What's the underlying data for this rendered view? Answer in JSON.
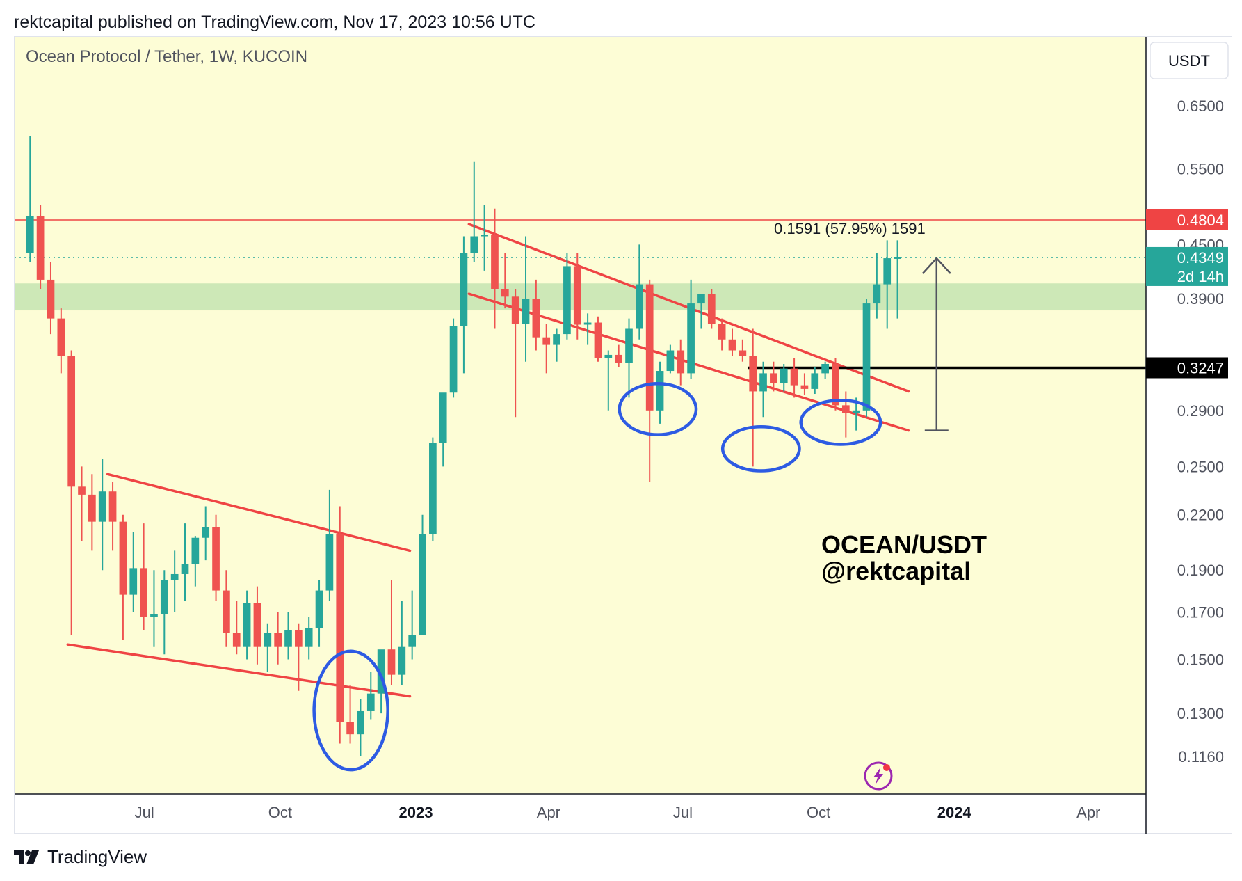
{
  "header": {
    "publisher_line": "rektcapital published on TradingView.com, Nov 17, 2023 10:56 UTC"
  },
  "footer": {
    "brand": "TradingView"
  },
  "colors": {
    "background": "#fdfdd6",
    "bull": "#26a69a",
    "bear": "#ef5350",
    "trendline": "#ef4444",
    "circle": "#2d5be3",
    "zone": "#c8e6b4",
    "resistance": "#ef4444",
    "support": "#000000"
  },
  "chart_data": {
    "type": "candlestick",
    "title": "Ocean Protocol / Tether, 1W, KUCOIN",
    "currency_label": "USDT",
    "y_scale": "log",
    "ylim": [
      0.105,
      0.78
    ],
    "xlabel": "",
    "ylabel": "",
    "y_ticks": [
      "0.6500",
      "0.5500",
      "0.4500",
      "0.3900",
      "0.2900",
      "0.2500",
      "0.2200",
      "0.1900",
      "0.1700",
      "0.1500",
      "0.1300",
      "0.1160"
    ],
    "x_ticks": [
      {
        "label": "Jul",
        "date": "2022-07-01",
        "bold": false
      },
      {
        "label": "Oct",
        "date": "2022-10-01",
        "bold": false
      },
      {
        "label": "2023",
        "date": "2023-01-01",
        "bold": true
      },
      {
        "label": "Apr",
        "date": "2023-04-01",
        "bold": false
      },
      {
        "label": "Jul",
        "date": "2023-07-01",
        "bold": false
      },
      {
        "label": "Oct",
        "date": "2023-10-01",
        "bold": false
      },
      {
        "label": "2024",
        "date": "2024-01-01",
        "bold": true
      },
      {
        "label": "Apr",
        "date": "2024-04-01",
        "bold": false
      }
    ],
    "x_range": [
      "2022-04-04",
      "2024-05-10"
    ],
    "candles": [
      {
        "date": "2022-04-11",
        "o": 0.44,
        "h": 0.6,
        "l": 0.43,
        "c": 0.485
      },
      {
        "date": "2022-04-18",
        "o": 0.485,
        "h": 0.5,
        "l": 0.4,
        "c": 0.41
      },
      {
        "date": "2022-04-25",
        "o": 0.41,
        "h": 0.43,
        "l": 0.355,
        "c": 0.37
      },
      {
        "date": "2022-05-02",
        "o": 0.37,
        "h": 0.38,
        "l": 0.32,
        "c": 0.335
      },
      {
        "date": "2022-05-09",
        "o": 0.335,
        "h": 0.34,
        "l": 0.16,
        "c": 0.237
      },
      {
        "date": "2022-05-16",
        "o": 0.237,
        "h": 0.25,
        "l": 0.205,
        "c": 0.232
      },
      {
        "date": "2022-05-23",
        "o": 0.232,
        "h": 0.245,
        "l": 0.2,
        "c": 0.216
      },
      {
        "date": "2022-05-30",
        "o": 0.216,
        "h": 0.255,
        "l": 0.19,
        "c": 0.234
      },
      {
        "date": "2022-06-06",
        "o": 0.234,
        "h": 0.24,
        "l": 0.2,
        "c": 0.216
      },
      {
        "date": "2022-06-13",
        "o": 0.216,
        "h": 0.22,
        "l": 0.158,
        "c": 0.178
      },
      {
        "date": "2022-06-20",
        "o": 0.178,
        "h": 0.21,
        "l": 0.17,
        "c": 0.191
      },
      {
        "date": "2022-06-27",
        "o": 0.191,
        "h": 0.215,
        "l": 0.162,
        "c": 0.168
      },
      {
        "date": "2022-07-04",
        "o": 0.168,
        "h": 0.19,
        "l": 0.155,
        "c": 0.169
      },
      {
        "date": "2022-07-11",
        "o": 0.169,
        "h": 0.19,
        "l": 0.152,
        "c": 0.185
      },
      {
        "date": "2022-07-18",
        "o": 0.185,
        "h": 0.2,
        "l": 0.17,
        "c": 0.188
      },
      {
        "date": "2022-07-25",
        "o": 0.188,
        "h": 0.215,
        "l": 0.175,
        "c": 0.193
      },
      {
        "date": "2022-08-01",
        "o": 0.193,
        "h": 0.208,
        "l": 0.182,
        "c": 0.207
      },
      {
        "date": "2022-08-08",
        "o": 0.207,
        "h": 0.225,
        "l": 0.195,
        "c": 0.213
      },
      {
        "date": "2022-08-15",
        "o": 0.213,
        "h": 0.22,
        "l": 0.175,
        "c": 0.18
      },
      {
        "date": "2022-08-22",
        "o": 0.18,
        "h": 0.19,
        "l": 0.155,
        "c": 0.161
      },
      {
        "date": "2022-08-29",
        "o": 0.161,
        "h": 0.175,
        "l": 0.152,
        "c": 0.155
      },
      {
        "date": "2022-09-05",
        "o": 0.155,
        "h": 0.18,
        "l": 0.15,
        "c": 0.174
      },
      {
        "date": "2022-09-12",
        "o": 0.174,
        "h": 0.182,
        "l": 0.148,
        "c": 0.155
      },
      {
        "date": "2022-09-19",
        "o": 0.155,
        "h": 0.165,
        "l": 0.145,
        "c": 0.161
      },
      {
        "date": "2022-09-26",
        "o": 0.161,
        "h": 0.17,
        "l": 0.148,
        "c": 0.155
      },
      {
        "date": "2022-10-03",
        "o": 0.155,
        "h": 0.17,
        "l": 0.15,
        "c": 0.162
      },
      {
        "date": "2022-10-10",
        "o": 0.162,
        "h": 0.165,
        "l": 0.138,
        "c": 0.155
      },
      {
        "date": "2022-10-17",
        "o": 0.155,
        "h": 0.168,
        "l": 0.15,
        "c": 0.163
      },
      {
        "date": "2022-10-24",
        "o": 0.163,
        "h": 0.185,
        "l": 0.155,
        "c": 0.18
      },
      {
        "date": "2022-10-31",
        "o": 0.18,
        "h": 0.235,
        "l": 0.175,
        "c": 0.209
      },
      {
        "date": "2022-11-07",
        "o": 0.209,
        "h": 0.225,
        "l": 0.12,
        "c": 0.127
      },
      {
        "date": "2022-11-14",
        "o": 0.127,
        "h": 0.14,
        "l": 0.12,
        "c": 0.123
      },
      {
        "date": "2022-11-21",
        "o": 0.123,
        "h": 0.135,
        "l": 0.116,
        "c": 0.131
      },
      {
        "date": "2022-11-28",
        "o": 0.131,
        "h": 0.145,
        "l": 0.128,
        "c": 0.137
      },
      {
        "date": "2022-12-05",
        "o": 0.137,
        "h": 0.15,
        "l": 0.13,
        "c": 0.154
      },
      {
        "date": "2022-12-12",
        "o": 0.154,
        "h": 0.185,
        "l": 0.14,
        "c": 0.144
      },
      {
        "date": "2022-12-19",
        "o": 0.144,
        "h": 0.175,
        "l": 0.14,
        "c": 0.155
      },
      {
        "date": "2022-12-26",
        "o": 0.155,
        "h": 0.18,
        "l": 0.15,
        "c": 0.16
      },
      {
        "date": "2023-01-02",
        "o": 0.16,
        "h": 0.22,
        "l": 0.16,
        "c": 0.209
      },
      {
        "date": "2023-01-09",
        "o": 0.209,
        "h": 0.27,
        "l": 0.205,
        "c": 0.266
      },
      {
        "date": "2023-01-16",
        "o": 0.266,
        "h": 0.3,
        "l": 0.25,
        "c": 0.304
      },
      {
        "date": "2023-01-23",
        "o": 0.304,
        "h": 0.37,
        "l": 0.3,
        "c": 0.363
      },
      {
        "date": "2023-01-30",
        "o": 0.363,
        "h": 0.46,
        "l": 0.32,
        "c": 0.44
      },
      {
        "date": "2023-02-06",
        "o": 0.44,
        "h": 0.56,
        "l": 0.43,
        "c": 0.46
      },
      {
        "date": "2023-02-13",
        "o": 0.46,
        "h": 0.5,
        "l": 0.42,
        "c": 0.462
      },
      {
        "date": "2023-02-20",
        "o": 0.462,
        "h": 0.495,
        "l": 0.36,
        "c": 0.4
      },
      {
        "date": "2023-02-27",
        "o": 0.4,
        "h": 0.44,
        "l": 0.38,
        "c": 0.392
      },
      {
        "date": "2023-03-06",
        "o": 0.392,
        "h": 0.4,
        "l": 0.285,
        "c": 0.365
      },
      {
        "date": "2023-03-13",
        "o": 0.365,
        "h": 0.46,
        "l": 0.33,
        "c": 0.39
      },
      {
        "date": "2023-03-20",
        "o": 0.39,
        "h": 0.41,
        "l": 0.34,
        "c": 0.352
      },
      {
        "date": "2023-03-27",
        "o": 0.352,
        "h": 0.365,
        "l": 0.32,
        "c": 0.345
      },
      {
        "date": "2023-04-03",
        "o": 0.345,
        "h": 0.36,
        "l": 0.33,
        "c": 0.355
      },
      {
        "date": "2023-04-10",
        "o": 0.355,
        "h": 0.44,
        "l": 0.35,
        "c": 0.425
      },
      {
        "date": "2023-04-17",
        "o": 0.425,
        "h": 0.44,
        "l": 0.35,
        "c": 0.364
      },
      {
        "date": "2023-04-24",
        "o": 0.364,
        "h": 0.375,
        "l": 0.345,
        "c": 0.366
      },
      {
        "date": "2023-05-01",
        "o": 0.366,
        "h": 0.372,
        "l": 0.33,
        "c": 0.333
      },
      {
        "date": "2023-05-08",
        "o": 0.333,
        "h": 0.34,
        "l": 0.29,
        "c": 0.336
      },
      {
        "date": "2023-05-15",
        "o": 0.336,
        "h": 0.345,
        "l": 0.325,
        "c": 0.329
      },
      {
        "date": "2023-05-22",
        "o": 0.329,
        "h": 0.37,
        "l": 0.3,
        "c": 0.36
      },
      {
        "date": "2023-05-29",
        "o": 0.36,
        "h": 0.45,
        "l": 0.35,
        "c": 0.405
      },
      {
        "date": "2023-06-05",
        "o": 0.405,
        "h": 0.41,
        "l": 0.24,
        "c": 0.29
      },
      {
        "date": "2023-06-12",
        "o": 0.29,
        "h": 0.33,
        "l": 0.28,
        "c": 0.322
      },
      {
        "date": "2023-06-19",
        "o": 0.322,
        "h": 0.345,
        "l": 0.32,
        "c": 0.34
      },
      {
        "date": "2023-06-26",
        "o": 0.34,
        "h": 0.35,
        "l": 0.31,
        "c": 0.32
      },
      {
        "date": "2023-07-03",
        "o": 0.32,
        "h": 0.41,
        "l": 0.315,
        "c": 0.385
      },
      {
        "date": "2023-07-10",
        "o": 0.385,
        "h": 0.395,
        "l": 0.36,
        "c": 0.395
      },
      {
        "date": "2023-07-17",
        "o": 0.395,
        "h": 0.4,
        "l": 0.36,
        "c": 0.365
      },
      {
        "date": "2023-07-24",
        "o": 0.365,
        "h": 0.37,
        "l": 0.34,
        "c": 0.35
      },
      {
        "date": "2023-07-31",
        "o": 0.35,
        "h": 0.36,
        "l": 0.335,
        "c": 0.34
      },
      {
        "date": "2023-08-07",
        "o": 0.34,
        "h": 0.35,
        "l": 0.33,
        "c": 0.335
      },
      {
        "date": "2023-08-14",
        "o": 0.335,
        "h": 0.36,
        "l": 0.25,
        "c": 0.305
      },
      {
        "date": "2023-08-21",
        "o": 0.305,
        "h": 0.33,
        "l": 0.285,
        "c": 0.32
      },
      {
        "date": "2023-08-28",
        "o": 0.32,
        "h": 0.33,
        "l": 0.305,
        "c": 0.312
      },
      {
        "date": "2023-09-04",
        "o": 0.312,
        "h": 0.328,
        "l": 0.305,
        "c": 0.324
      },
      {
        "date": "2023-09-11",
        "o": 0.324,
        "h": 0.333,
        "l": 0.3,
        "c": 0.31
      },
      {
        "date": "2023-09-18",
        "o": 0.31,
        "h": 0.32,
        "l": 0.302,
        "c": 0.307
      },
      {
        "date": "2023-09-25",
        "o": 0.307,
        "h": 0.325,
        "l": 0.303,
        "c": 0.32
      },
      {
        "date": "2023-10-02",
        "o": 0.32,
        "h": 0.33,
        "l": 0.315,
        "c": 0.328
      },
      {
        "date": "2023-10-09",
        "o": 0.328,
        "h": 0.333,
        "l": 0.29,
        "c": 0.294
      },
      {
        "date": "2023-10-16",
        "o": 0.294,
        "h": 0.305,
        "l": 0.27,
        "c": 0.288
      },
      {
        "date": "2023-10-23",
        "o": 0.288,
        "h": 0.3,
        "l": 0.275,
        "c": 0.29
      },
      {
        "date": "2023-10-30",
        "o": 0.29,
        "h": 0.39,
        "l": 0.285,
        "c": 0.385
      },
      {
        "date": "2023-11-06",
        "o": 0.385,
        "h": 0.44,
        "l": 0.37,
        "c": 0.405
      },
      {
        "date": "2023-11-13",
        "o": 0.405,
        "h": 0.455,
        "l": 0.36,
        "c": 0.434
      },
      {
        "date": "2023-11-20",
        "o": 0.434,
        "h": 0.455,
        "l": 0.37,
        "c": 0.4349
      }
    ],
    "horizontal_levels": [
      {
        "name": "resistance",
        "price": 0.4804,
        "label": "0.4804"
      },
      {
        "name": "support",
        "price": 0.3247,
        "label": "0.3247",
        "start_date": "2023-08-14"
      },
      {
        "name": "last-price",
        "price": 0.4349,
        "label": "0.4349",
        "sublabel": "2d 14h"
      }
    ],
    "green_zone": [
      0.378,
      0.406
    ],
    "trendlines": [
      {
        "name": "range-top",
        "p1": [
          "2022-06-06",
          0.245
        ],
        "p2": [
          "2022-12-28",
          0.2
        ]
      },
      {
        "name": "range-bottom",
        "p1": [
          "2022-05-10",
          0.156
        ],
        "p2": [
          "2022-12-28",
          0.136
        ]
      },
      {
        "name": "wedge-top",
        "p1": [
          "2023-02-06",
          0.475
        ],
        "p2": [
          "2023-12-01",
          0.305
        ]
      },
      {
        "name": "wedge-bottom",
        "p1": [
          "2023-02-06",
          0.395
        ],
        "p2": [
          "2023-12-01",
          0.275
        ]
      }
    ],
    "circles": [
      {
        "date": "2022-11-18",
        "price": 0.131,
        "rx_days": 25,
        "ry_factor": 1.17
      },
      {
        "date": "2023-06-14",
        "price": 0.291,
        "rx_days": 26,
        "ry_factor": 1.07
      },
      {
        "date": "2023-08-23",
        "price": 0.262,
        "rx_days": 26,
        "ry_factor": 1.06
      },
      {
        "date": "2023-10-16",
        "price": 0.281,
        "rx_days": 27,
        "ry_factor": 1.06
      }
    ],
    "measure": {
      "date": "2023-12-20",
      "from": 0.275,
      "to": 0.434,
      "label": "0.1591 (57.95%) 1591"
    },
    "watermark": [
      "OCEAN/USDT",
      "@rektcapital"
    ]
  }
}
